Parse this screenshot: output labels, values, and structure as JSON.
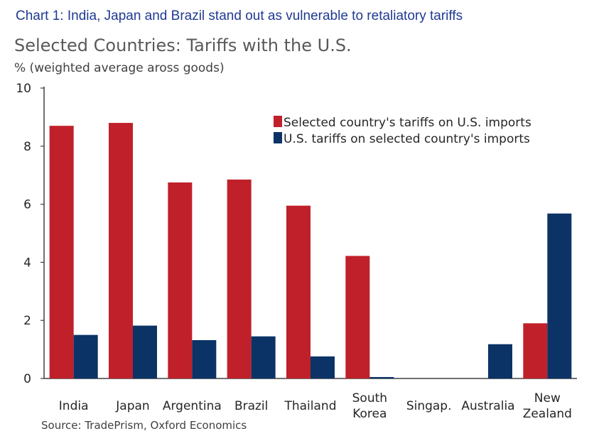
{
  "headline": "Chart 1: India, Japan and Brazil stand out as vulnerable to retaliatory tariffs",
  "chart_data": {
    "type": "bar",
    "title": "Selected Countries: Tariffs with the U.S.",
    "ylabel": "% (weighted average aross goods)",
    "xlabel": "",
    "ylim": [
      0,
      10
    ],
    "yticks": [
      0,
      2,
      4,
      6,
      8,
      10
    ],
    "categories": [
      "India",
      "Japan",
      "Argentina",
      "Brazil",
      "Thailand",
      "South\nKorea",
      "Singap.",
      "Australia",
      "New\nZealand"
    ],
    "series": [
      {
        "name": "Selected country's tariffs on U.S. imports",
        "color": "#c0202a",
        "values": [
          8.7,
          8.8,
          6.75,
          6.85,
          5.95,
          4.22,
          0,
          0,
          1.9
        ]
      },
      {
        "name": "U.S. tariffs on selected country's imports",
        "color": "#0b3366",
        "values": [
          1.5,
          1.82,
          1.32,
          1.45,
          0.76,
          0.05,
          0,
          1.18,
          5.68
        ]
      }
    ],
    "legend": "top-right",
    "grid": false,
    "source": "Source: TradePrism, Oxford Economics"
  }
}
